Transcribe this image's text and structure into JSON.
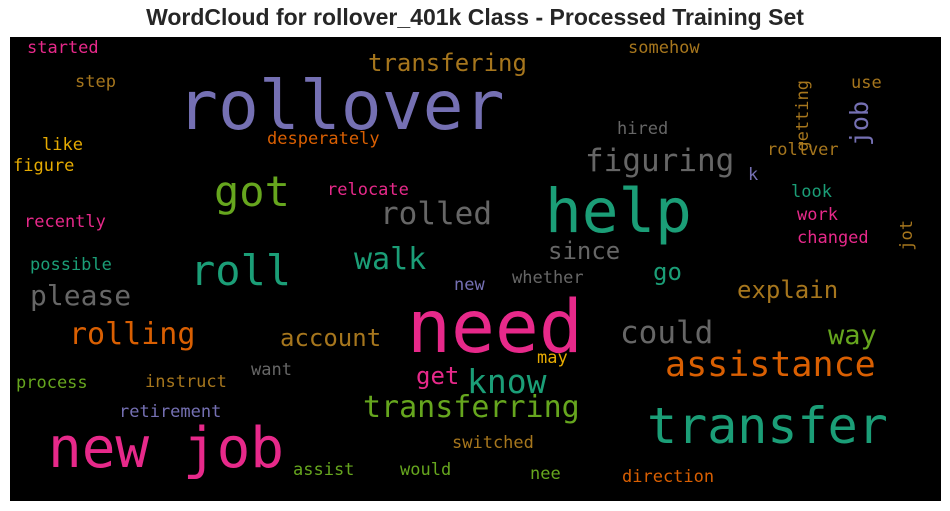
{
  "chart_data": {
    "type": "wordcloud",
    "title": "WordCloud for rollover_401k Class - Processed Training Set",
    "background": "#000000",
    "colormap": "Dark2",
    "words": [
      {
        "text": "rollover",
        "color": "#7570b3"
      },
      {
        "text": "need",
        "color": "#e7298a"
      },
      {
        "text": "help",
        "color": "#1b9e77"
      },
      {
        "text": "new job",
        "color": "#e7298a"
      },
      {
        "text": "transfer",
        "color": "#1b9e77"
      },
      {
        "text": "got",
        "color": "#66a61e"
      },
      {
        "text": "roll",
        "color": "#1b9e77"
      },
      {
        "text": "assistance",
        "color": "#d95f02"
      },
      {
        "text": "transferring",
        "color": "#66a61e"
      },
      {
        "text": "know",
        "color": "#1b9e77"
      },
      {
        "text": "rolling",
        "color": "#d95f02"
      },
      {
        "text": "could",
        "color": "#666666"
      },
      {
        "text": "figuring",
        "color": "#666666"
      },
      {
        "text": "rolled",
        "color": "#666666"
      },
      {
        "text": "please",
        "color": "#666666"
      },
      {
        "text": "walk",
        "color": "#1b9e77"
      },
      {
        "text": "transfering",
        "color": "#a6761d"
      },
      {
        "text": "account",
        "color": "#a6761d"
      },
      {
        "text": "way",
        "color": "#66a61e"
      },
      {
        "text": "explain",
        "color": "#a6761d"
      },
      {
        "text": "since",
        "color": "#666666"
      },
      {
        "text": "go",
        "color": "#1b9e77"
      },
      {
        "text": "get",
        "color": "#e7298a"
      },
      {
        "text": "job",
        "color": "#7570b3"
      },
      {
        "text": "desperately",
        "color": "#d95f02"
      },
      {
        "text": "relocate",
        "color": "#e7298a"
      },
      {
        "text": "started",
        "color": "#e7298a"
      },
      {
        "text": "step",
        "color": "#a6761d"
      },
      {
        "text": "like",
        "color": "#e6ab02"
      },
      {
        "text": "figure",
        "color": "#e6ab02"
      },
      {
        "text": "recently",
        "color": "#e7298a"
      },
      {
        "text": "possible",
        "color": "#1b9e77"
      },
      {
        "text": "process",
        "color": "#66a61e"
      },
      {
        "text": "instruct",
        "color": "#a6761d"
      },
      {
        "text": "retirement",
        "color": "#7570b3"
      },
      {
        "text": "want",
        "color": "#666666"
      },
      {
        "text": "may",
        "color": "#e6ab02"
      },
      {
        "text": "new",
        "color": "#7570b3"
      },
      {
        "text": "whether",
        "color": "#666666"
      },
      {
        "text": "somehow",
        "color": "#a6761d"
      },
      {
        "text": "hired",
        "color": "#666666"
      },
      {
        "text": "getting",
        "color": "#a6761d"
      },
      {
        "text": "use",
        "color": "#a6761d"
      },
      {
        "text": "rollver",
        "color": "#a6761d"
      },
      {
        "text": "k",
        "color": "#7570b3"
      },
      {
        "text": "look",
        "color": "#1b9e77"
      },
      {
        "text": "work",
        "color": "#e7298a"
      },
      {
        "text": "changed",
        "color": "#e7298a"
      },
      {
        "text": "jot",
        "color": "#a6761d"
      },
      {
        "text": "switched",
        "color": "#a6761d"
      },
      {
        "text": "assist",
        "color": "#66a61e"
      },
      {
        "text": "would",
        "color": "#66a61e"
      },
      {
        "text": "nee",
        "color": "#66a61e"
      },
      {
        "text": "direction",
        "color": "#d95f02"
      }
    ]
  }
}
